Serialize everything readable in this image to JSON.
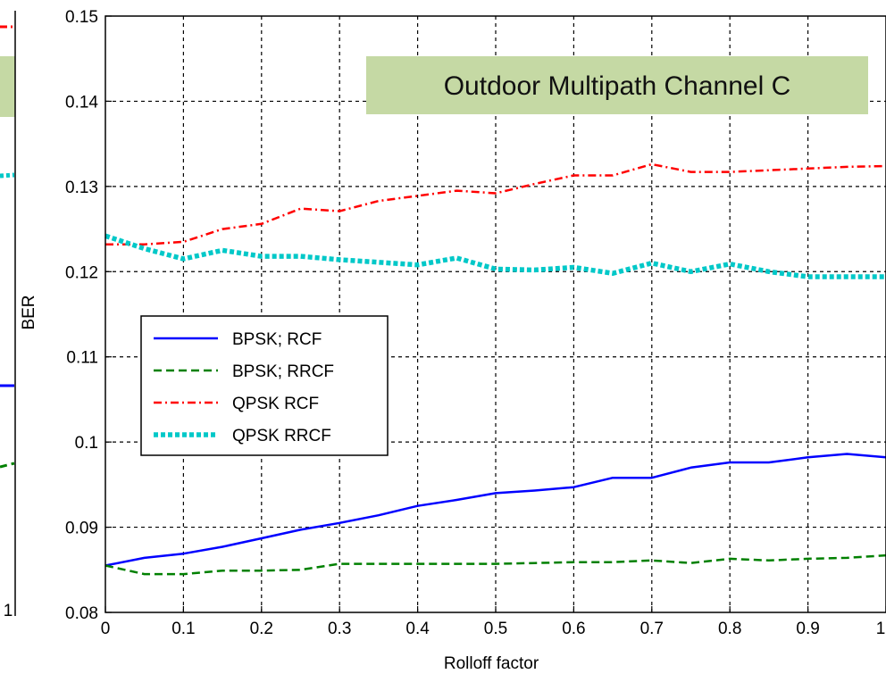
{
  "chart_data": {
    "type": "line",
    "title": "",
    "annotation": "Outdoor Multipath Channel C",
    "xlabel": "Rolloff factor",
    "ylabel": "BER",
    "xlim": [
      0,
      1
    ],
    "ylim": [
      0.08,
      0.15
    ],
    "grid": true,
    "legend_position": "center-left",
    "xticks": [
      0,
      0.1,
      0.2,
      0.3,
      0.4,
      0.5,
      0.6,
      0.7,
      0.8,
      0.9,
      1
    ],
    "xtick_labels": [
      "0",
      "0.1",
      "0.2",
      "0.3",
      "0.4",
      "0.5",
      "0.6",
      "0.7",
      "0.8",
      "0.9",
      "1"
    ],
    "yticks": [
      0.08,
      0.09,
      0.1,
      0.11,
      0.12,
      0.13,
      0.14,
      0.15
    ],
    "ytick_labels": [
      "0.08",
      "0.09",
      "0.1",
      "0.11",
      "0.12",
      "0.13",
      "0.14",
      "0.15"
    ],
    "x": [
      0,
      0.05,
      0.1,
      0.15,
      0.2,
      0.25,
      0.3,
      0.35,
      0.4,
      0.45,
      0.5,
      0.55,
      0.6,
      0.65,
      0.7,
      0.75,
      0.8,
      0.85,
      0.9,
      0.95,
      1.0
    ],
    "series": [
      {
        "name": "BPSK; RCF",
        "color": "#0000ff",
        "style": "solid",
        "values": [
          0.0855,
          0.0864,
          0.0869,
          0.0877,
          0.0887,
          0.0897,
          0.0905,
          0.0914,
          0.0925,
          0.0932,
          0.094,
          0.0943,
          0.0947,
          0.0958,
          0.0958,
          0.097,
          0.0976,
          0.0976,
          0.0982,
          0.0986,
          0.0982
        ]
      },
      {
        "name": "BPSK; RRCF",
        "color": "#008000",
        "style": "dashed",
        "values": [
          0.0855,
          0.0845,
          0.0845,
          0.0849,
          0.0849,
          0.085,
          0.0857,
          0.0857,
          0.0857,
          0.0857,
          0.0857,
          0.0858,
          0.0859,
          0.0859,
          0.0861,
          0.0858,
          0.0863,
          0.0861,
          0.0863,
          0.0864,
          0.0867
        ]
      },
      {
        "name": "QPSK RCF",
        "color": "#ff0000",
        "style": "dashdot",
        "values": [
          0.1232,
          0.1232,
          0.1235,
          0.125,
          0.1256,
          0.1274,
          0.1271,
          0.1283,
          0.1289,
          0.1295,
          0.1292,
          0.1303,
          0.1313,
          0.1313,
          0.1326,
          0.1317,
          0.1317,
          0.1319,
          0.1321,
          0.1323,
          0.1324
        ]
      },
      {
        "name": "QPSK RRCF",
        "color": "#00c8c8",
        "style": "dotted",
        "values": [
          0.1242,
          0.1227,
          0.1215,
          0.1225,
          0.1218,
          0.1218,
          0.1214,
          0.1211,
          0.1208,
          0.1216,
          0.1203,
          0.1202,
          0.1205,
          0.1198,
          0.121,
          0.12,
          0.1209,
          0.12,
          0.1194,
          0.1194,
          0.1194
        ]
      }
    ]
  },
  "left_panel": {
    "series_colors": [
      "#ff0000",
      "#00c8c8",
      "#0000ff",
      "#008000"
    ],
    "bottom_tick": "1",
    "annot_color": "#c5d9a4"
  },
  "colors": {
    "annotation_fill": "#c5d9a4",
    "annotation_border": "#c5d9a4"
  }
}
